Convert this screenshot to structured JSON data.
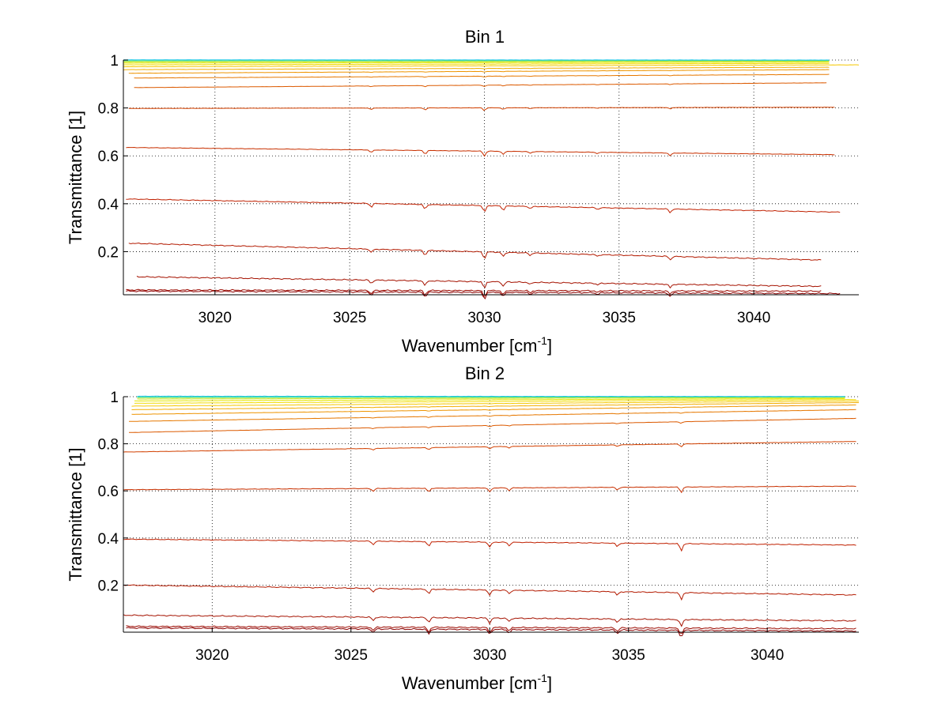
{
  "chart_data": [
    {
      "type": "line",
      "title": "Bin 1",
      "xlabel": "Wavenumber [cm",
      "xlabel_sup": "-1",
      "xlabel_end": "]",
      "ylabel": "Transmittance [1]",
      "xlim": [
        3016.6,
        3043.9
      ],
      "ylim": [
        0.02,
        1.0
      ],
      "xticks": [
        "3020",
        "3025",
        "3030",
        "3035",
        "3040"
      ],
      "yticks": [
        "0.2",
        "0.4",
        "0.6",
        "0.8",
        "1"
      ],
      "grid": true,
      "absorption_lines": [
        {
          "x": 3025.8,
          "depth": 0.015
        },
        {
          "x": 3027.8,
          "depth": 0.02
        },
        {
          "x": 3030.0,
          "depth": 0.028
        },
        {
          "x": 3030.7,
          "depth": 0.018
        },
        {
          "x": 3031.7,
          "depth": 0.01
        },
        {
          "x": 3034.2,
          "depth": 0.008
        },
        {
          "x": 3036.9,
          "depth": 0.015
        }
      ],
      "series": [
        {
          "x_start": 3016.7,
          "x_end": 3043.2,
          "y_start": 0.035,
          "y_end": 0.025,
          "color": "#8b0000"
        },
        {
          "x_start": 3016.7,
          "x_end": 3042.5,
          "y_start": 0.04,
          "y_end": 0.035,
          "color": "#9b0a00"
        },
        {
          "x_start": 3017.1,
          "x_end": 3042.5,
          "y_start": 0.095,
          "y_end": 0.055,
          "color": "#a51200"
        },
        {
          "x_start": 3016.8,
          "x_end": 3042.5,
          "y_start": 0.235,
          "y_end": 0.165,
          "color": "#b31a00"
        },
        {
          "x_start": 3016.7,
          "x_end": 3043.2,
          "y_start": 0.42,
          "y_end": 0.365,
          "color": "#c02000"
        },
        {
          "x_start": 3016.7,
          "x_end": 3043.0,
          "y_start": 0.635,
          "y_end": 0.605,
          "color": "#c83000"
        },
        {
          "x_start": 3016.8,
          "x_end": 3043.0,
          "y_start": 0.798,
          "y_end": 0.803,
          "color": "#d24000"
        },
        {
          "x_start": 3017.0,
          "x_end": 3042.7,
          "y_start": 0.885,
          "y_end": 0.905,
          "color": "#dc5a00"
        },
        {
          "x_start": 3017.0,
          "x_end": 3042.8,
          "y_start": 0.925,
          "y_end": 0.94,
          "color": "#e67800"
        },
        {
          "x_start": 3016.8,
          "x_end": 3042.8,
          "y_start": 0.945,
          "y_end": 0.96,
          "color": "#ee9400"
        },
        {
          "x_start": 3016.6,
          "x_end": 3042.8,
          "y_start": 0.96,
          "y_end": 0.97,
          "color": "#f2ae00"
        },
        {
          "x_start": 3016.6,
          "x_end": 3043.9,
          "y_start": 0.972,
          "y_end": 0.98,
          "color": "#f5c800"
        },
        {
          "x_start": 3016.6,
          "x_end": 3042.8,
          "y_start": 0.98,
          "y_end": 0.986,
          "color": "#f2dc00"
        },
        {
          "x_start": 3016.6,
          "x_end": 3042.8,
          "y_start": 0.987,
          "y_end": 0.991,
          "color": "#e6e600"
        },
        {
          "x_start": 3016.6,
          "x_end": 3042.8,
          "y_start": 0.992,
          "y_end": 0.995,
          "color": "#c8e61e"
        },
        {
          "x_start": 3016.6,
          "x_end": 3042.8,
          "y_start": 0.996,
          "y_end": 0.997,
          "color": "#8ce65a"
        },
        {
          "x_start": 3016.6,
          "x_end": 3042.8,
          "y_start": 0.999,
          "y_end": 0.999,
          "color": "#3cdcaa"
        },
        {
          "x_start": 3016.6,
          "x_end": 3042.8,
          "y_start": 1.001,
          "y_end": 1.0,
          "color": "#1ec8e6"
        }
      ]
    },
    {
      "type": "line",
      "title": "Bin 2",
      "xlabel": "Wavenumber [cm",
      "xlabel_sup": "-1",
      "xlabel_end": "]",
      "ylabel": "Transmittance [1]",
      "xlim": [
        3016.8,
        3043.3
      ],
      "ylim": [
        0.0,
        1.0
      ],
      "xticks": [
        "3020",
        "3025",
        "3030",
        "3035",
        "3040"
      ],
      "yticks": [
        "0.2",
        "0.4",
        "0.6",
        "0.8",
        "1"
      ],
      "grid": true,
      "absorption_lines": [
        {
          "x": 3025.8,
          "depth": 0.015
        },
        {
          "x": 3027.8,
          "depth": 0.02
        },
        {
          "x": 3030.0,
          "depth": 0.022
        },
        {
          "x": 3030.7,
          "depth": 0.015
        },
        {
          "x": 3034.6,
          "depth": 0.015
        },
        {
          "x": 3036.9,
          "depth": 0.03
        }
      ],
      "series": [
        {
          "x_start": 3016.9,
          "x_end": 3043.2,
          "y_start": 0.018,
          "y_end": 0.005,
          "color": "#8b0000"
        },
        {
          "x_start": 3016.9,
          "x_end": 3043.2,
          "y_start": 0.025,
          "y_end": 0.015,
          "color": "#9b0a00"
        },
        {
          "x_start": 3016.8,
          "x_end": 3043.2,
          "y_start": 0.072,
          "y_end": 0.048,
          "color": "#a51200"
        },
        {
          "x_start": 3016.8,
          "x_end": 3043.2,
          "y_start": 0.2,
          "y_end": 0.158,
          "color": "#b31a00"
        },
        {
          "x_start": 3016.8,
          "x_end": 3043.2,
          "y_start": 0.395,
          "y_end": 0.37,
          "color": "#c02000"
        },
        {
          "x_start": 3016.8,
          "x_end": 3043.2,
          "y_start": 0.605,
          "y_end": 0.62,
          "color": "#c83000"
        },
        {
          "x_start": 3016.8,
          "x_end": 3043.2,
          "y_start": 0.765,
          "y_end": 0.81,
          "color": "#d24000"
        },
        {
          "x_start": 3017.0,
          "x_end": 3043.2,
          "y_start": 0.848,
          "y_end": 0.908,
          "color": "#dc5a00"
        },
        {
          "x_start": 3017.0,
          "x_end": 3043.2,
          "y_start": 0.895,
          "y_end": 0.945,
          "color": "#e67800"
        },
        {
          "x_start": 3017.1,
          "x_end": 3043.2,
          "y_start": 0.925,
          "y_end": 0.965,
          "color": "#ee9400"
        },
        {
          "x_start": 3017.1,
          "x_end": 3043.3,
          "y_start": 0.945,
          "y_end": 0.975,
          "color": "#f2ae00"
        },
        {
          "x_start": 3017.1,
          "x_end": 3043.3,
          "y_start": 0.96,
          "y_end": 0.982,
          "color": "#f5c800"
        },
        {
          "x_start": 3017.2,
          "x_end": 3043.2,
          "y_start": 0.972,
          "y_end": 0.988,
          "color": "#f2dc00"
        },
        {
          "x_start": 3017.2,
          "x_end": 3042.8,
          "y_start": 0.982,
          "y_end": 0.992,
          "color": "#e6e600"
        },
        {
          "x_start": 3017.3,
          "x_end": 3042.8,
          "y_start": 0.99,
          "y_end": 0.996,
          "color": "#c8e61e"
        },
        {
          "x_start": 3017.3,
          "x_end": 3042.8,
          "y_start": 0.996,
          "y_end": 0.998,
          "color": "#8ce65a"
        },
        {
          "x_start": 3017.3,
          "x_end": 3042.8,
          "y_start": 0.999,
          "y_end": 1.0,
          "color": "#3cdcaa"
        },
        {
          "x_start": 3017.3,
          "x_end": 3042.8,
          "y_start": 1.002,
          "y_end": 1.001,
          "color": "#1ec8e6"
        }
      ]
    }
  ]
}
